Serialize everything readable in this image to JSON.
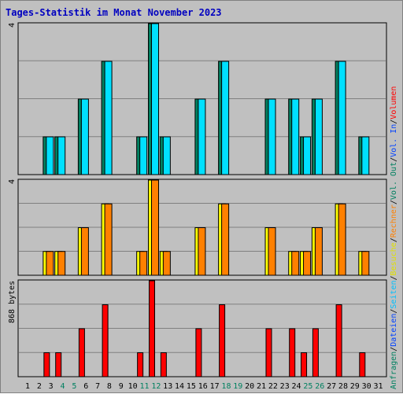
{
  "chart_data": {
    "type": "bar",
    "title": "Tages-Statistik im Monat November 2023",
    "days": [
      "1",
      "2",
      "3",
      "4",
      "5",
      "6",
      "7",
      "8",
      "9",
      "10",
      "11",
      "12",
      "13",
      "14",
      "15",
      "16",
      "17",
      "18",
      "19",
      "20",
      "21",
      "22",
      "23",
      "24",
      "25",
      "26",
      "27",
      "28",
      "29",
      "30",
      "31"
    ],
    "weekend_days": [
      "4",
      "5",
      "11",
      "12",
      "18",
      "19",
      "25",
      "26"
    ],
    "panels": [
      {
        "name": "requests",
        "max_label": "4",
        "ylim": [
          0,
          4
        ],
        "series": [
          {
            "name": "Anfragen",
            "color": "#008060",
            "values": [
              0,
              1,
              1,
              0,
              2,
              0,
              3,
              0,
              0,
              1,
              4,
              1,
              0,
              0,
              2,
              0,
              3,
              0,
              0,
              0,
              2,
              0,
              2,
              1,
              2,
              0,
              3,
              0,
              1,
              0,
              0
            ]
          },
          {
            "name": "Dateien",
            "color": "#00e0ff",
            "values": [
              0,
              1,
              1,
              0,
              2,
              0,
              3,
              0,
              0,
              1,
              4,
              1,
              0,
              0,
              2,
              0,
              3,
              0,
              0,
              0,
              2,
              0,
              2,
              1,
              2,
              0,
              3,
              0,
              1,
              0,
              0
            ]
          },
          {
            "name": "Seiten",
            "color": "#00ffff",
            "values": [
              0,
              0,
              0,
              0,
              0,
              0,
              0,
              0,
              0,
              0,
              0,
              0,
              0,
              0,
              0,
              0,
              0,
              0,
              0,
              0,
              0,
              0,
              0,
              0,
              0,
              0,
              0,
              0,
              0,
              0,
              0
            ]
          }
        ]
      },
      {
        "name": "visits",
        "max_label": "4",
        "ylim": [
          0,
          4
        ],
        "series": [
          {
            "name": "Besuche",
            "color": "#ffff00",
            "values": [
              0,
              1,
              1,
              0,
              2,
              0,
              3,
              0,
              0,
              1,
              4,
              1,
              0,
              0,
              2,
              0,
              3,
              0,
              0,
              0,
              2,
              0,
              1,
              1,
              2,
              0,
              3,
              0,
              1,
              0,
              0
            ]
          },
          {
            "name": "Rechner",
            "color": "#ff8000",
            "values": [
              0,
              1,
              1,
              0,
              2,
              0,
              3,
              0,
              0,
              1,
              4,
              1,
              0,
              0,
              2,
              0,
              3,
              0,
              0,
              0,
              2,
              0,
              1,
              1,
              2,
              0,
              3,
              0,
              1,
              0,
              0
            ]
          }
        ]
      },
      {
        "name": "volume",
        "max_label": "868 bytes",
        "ylim": [
          0,
          868
        ],
        "series": [
          {
            "name": "Volumen",
            "color": "#ff0000",
            "values": [
              0,
              217,
              217,
              0,
              434,
              0,
              651,
              0,
              0,
              217,
              868,
              217,
              0,
              0,
              434,
              0,
              651,
              0,
              0,
              0,
              434,
              0,
              434,
              217,
              434,
              0,
              651,
              0,
              217,
              0,
              0
            ]
          }
        ]
      }
    ],
    "legend_segments": [
      {
        "text": "Anfragen",
        "color": "#008060"
      },
      {
        "text": "/",
        "color": "#000000"
      },
      {
        "text": "Dateien",
        "color": "#0040ff"
      },
      {
        "text": "/",
        "color": "#000000"
      },
      {
        "text": "Seiten",
        "color": "#00c0ff"
      },
      {
        "text": "/",
        "color": "#000000"
      },
      {
        "text": "Besuche",
        "color": "#e0e000"
      },
      {
        "text": "/",
        "color": "#000000"
      },
      {
        "text": "Rechner",
        "color": "#ff8000"
      },
      {
        "text": "/",
        "color": "#000000"
      },
      {
        "text": "Vol. Out",
        "color": "#008060"
      },
      {
        "text": "/",
        "color": "#000000"
      },
      {
        "text": "Vol. In",
        "color": "#0040ff"
      },
      {
        "text": "/",
        "color": "#000000"
      },
      {
        "text": "Volumen",
        "color": "#ff0000"
      }
    ]
  }
}
